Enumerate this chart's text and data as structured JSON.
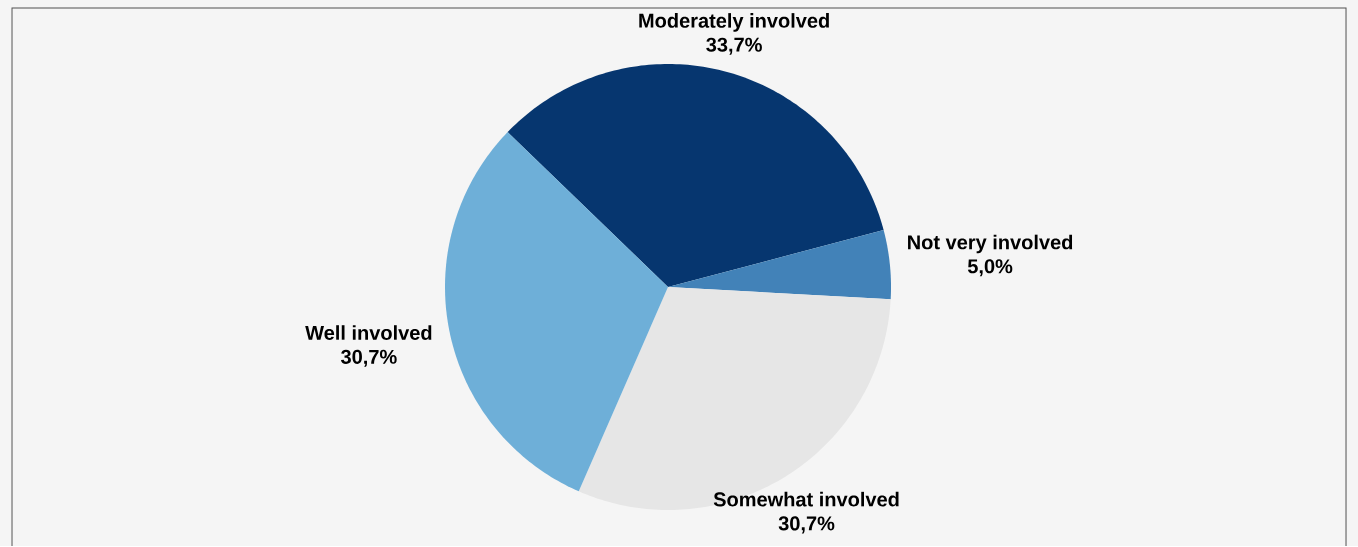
{
  "chart_data": {
    "type": "pie",
    "categories": [
      "Moderately involved",
      "Not very involved",
      "Somewhat involved",
      "Well involved"
    ],
    "values": [
      33.7,
      5.0,
      30.7,
      30.7
    ],
    "colors": [
      "#06366f",
      "#4282b8",
      "#e6e6e6",
      "#6eafd8"
    ],
    "value_labels": [
      "33,7%",
      "5,0%",
      "30,7%",
      "30,7%"
    ]
  }
}
